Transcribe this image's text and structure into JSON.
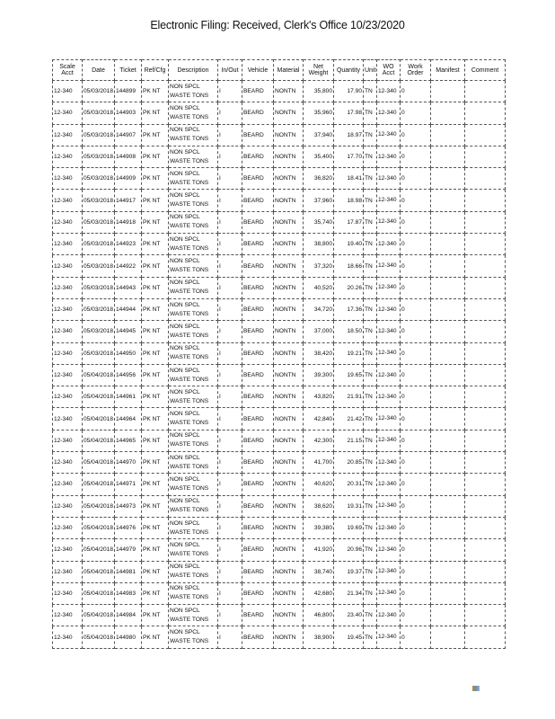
{
  "header": {
    "title": "Electronic Filing: Received, Clerk's Office 10/23/2020"
  },
  "table": {
    "columns": [
      "Scale Acct",
      "Date",
      "Ticket",
      "Ref/Cfg",
      "Description",
      "In/Out",
      "Vehicle",
      "Material",
      "Net Weight",
      "Quantity",
      "Unit",
      "WO Acct",
      "Work Order",
      "Manifest",
      "Comment"
    ],
    "rows": [
      [
        "12-340",
        "05/03/2018",
        "144899",
        "PK NT",
        "NON SPCL WASTE TONS",
        "I",
        "BEARD",
        "NONTN",
        "35,800",
        "17.90",
        "TN",
        "12-340",
        "0",
        "",
        ""
      ],
      [
        "12-340",
        "05/03/2018",
        "144903",
        "PK NT",
        "NON SPCL WASTE TONS",
        "I",
        "BEARD",
        "NONTN",
        "35,960",
        "17.98",
        "TN",
        "12-340",
        "0",
        "",
        ""
      ],
      [
        "12-340",
        "05/03/2018",
        "144907",
        "PK NT",
        "NON SPCL WASTE TONS",
        "I",
        "BEARD",
        "NONTN",
        "37,940",
        "18.97",
        "TN",
        "12-340",
        "0",
        "",
        ""
      ],
      [
        "12-340",
        "05/03/2018",
        "144908",
        "PK NT",
        "NON SPCL WASTE TONS",
        "I",
        "BEARD",
        "NONTN",
        "35,400",
        "17.70",
        "TN",
        "12-340",
        "0",
        "",
        ""
      ],
      [
        "12-340",
        "05/03/2018",
        "144909",
        "PK NT",
        "NON SPCL WASTE TONS",
        "I",
        "BEARD",
        "NONTN",
        "36,820",
        "18.41",
        "TN",
        "12-340",
        "0",
        "",
        ""
      ],
      [
        "12-340",
        "05/03/2018",
        "144917",
        "PK NT",
        "NON SPCL WASTE TONS",
        "I",
        "BEARD",
        "NONTN",
        "37,960",
        "18.98",
        "TN",
        "12-340",
        "0",
        "",
        ""
      ],
      [
        "12-340",
        "05/03/2018",
        "144918",
        "PK NT",
        "NON SPCL WASTE TONS",
        "I",
        "BEARD",
        "NONTN",
        "35,740",
        "17.87",
        "TN",
        "12-340",
        "0",
        "",
        ""
      ],
      [
        "12-340",
        "05/03/2018",
        "144923",
        "PK NT",
        "NON SPCL WASTE TONS",
        "I",
        "BEARD",
        "NONTN",
        "38,800",
        "19.40",
        "TN",
        "12-340",
        "0",
        "",
        ""
      ],
      [
        "12-340",
        "05/03/2018",
        "144922",
        "PK NT",
        "NON SPCL WASTE TONS",
        "I",
        "BEARD",
        "NONTN",
        "37,320",
        "18.66",
        "TN",
        "12-340",
        "0",
        "",
        ""
      ],
      [
        "12-340",
        "05/03/2018",
        "144943",
        "PK NT",
        "NON SPCL WASTE TONS",
        "I",
        "BEARD",
        "NONTN",
        "40,520",
        "20.26",
        "TN",
        "12-340",
        "0",
        "",
        ""
      ],
      [
        "12-340",
        "05/03/2018",
        "144944",
        "PK NT",
        "NON SPCL WASTE TONS",
        "I",
        "BEARD",
        "NONTN",
        "34,720",
        "17.36",
        "TN",
        "12-340",
        "0",
        "",
        ""
      ],
      [
        "12-340",
        "05/03/2018",
        "144945",
        "PK NT",
        "NON SPCL WASTE TONS",
        "I",
        "BEARD",
        "NONTN",
        "37,000",
        "18.50",
        "TN",
        "12-340",
        "0",
        "",
        ""
      ],
      [
        "12-340",
        "05/03/2018",
        "144950",
        "PK NT",
        "NON SPCL WASTE TONS",
        "I",
        "BEARD",
        "NONTN",
        "38,420",
        "19.21",
        "TN",
        "12-340",
        "0",
        "",
        ""
      ],
      [
        "12-340",
        "05/04/2018",
        "144956",
        "PK NT",
        "NON SPCL WASTE TONS",
        "I",
        "BEARD",
        "NONTN",
        "39,300",
        "19.65",
        "TN",
        "12-340",
        "0",
        "",
        ""
      ],
      [
        "12-340",
        "05/04/2018",
        "144961",
        "PK NT",
        "NON SPCL WASTE TONS",
        "I",
        "BEARD",
        "NONTN",
        "43,820",
        "21.91",
        "TN",
        "12-340",
        "0",
        "",
        ""
      ],
      [
        "12-340",
        "05/04/2018",
        "144964",
        "PK NT",
        "NON SPCL WASTE TONS",
        "I",
        "BEARD",
        "NONTN",
        "42,840",
        "21.42",
        "TN",
        "12-340",
        "0",
        "",
        ""
      ],
      [
        "12-340",
        "05/04/2018",
        "144965",
        "PK NT",
        "NON SPCL WASTE TONS",
        "I",
        "BEARD",
        "NONTN",
        "42,300",
        "21.15",
        "TN",
        "12-340",
        "0",
        "",
        ""
      ],
      [
        "12-340",
        "05/04/2018",
        "144970",
        "PK NT",
        "NON SPCL WASTE TONS",
        "I",
        "BEARD",
        "NONTN",
        "41,700",
        "20.85",
        "TN",
        "12-340",
        "0",
        "",
        ""
      ],
      [
        "12-340",
        "05/04/2018",
        "144971",
        "PK NT",
        "NON SPCL WASTE TONS",
        "I",
        "BEARD",
        "NONTN",
        "40,620",
        "20.31",
        "TN",
        "12-340",
        "0",
        "",
        ""
      ],
      [
        "12-340",
        "05/04/2018",
        "144973",
        "PK NT",
        "NON SPCL WASTE TONS",
        "I",
        "BEARD",
        "NONTN",
        "38,620",
        "19.31",
        "TN",
        "12-340",
        "0",
        "",
        ""
      ],
      [
        "12-340",
        "05/04/2018",
        "144976",
        "PK NT",
        "NON SPCL WASTE TONS",
        "I",
        "BEARD",
        "NONTN",
        "39,380",
        "19.69",
        "TN",
        "12-340",
        "0",
        "",
        ""
      ],
      [
        "12-340",
        "05/04/2018",
        "144979",
        "PK NT",
        "NON SPCL WASTE TONS",
        "I",
        "BEARD",
        "NONTN",
        "41,920",
        "20.96",
        "TN",
        "12-340",
        "0",
        "",
        ""
      ],
      [
        "12-340",
        "05/04/2018",
        "144981",
        "PK NT",
        "NON SPCL WASTE TONS",
        "I",
        "BEARD",
        "NONTN",
        "38,740",
        "19.37",
        "TN",
        "12-340",
        "0",
        "",
        ""
      ],
      [
        "12-340",
        "05/04/2018",
        "144983",
        "PK NT",
        "NON SPCL WASTE TONS",
        "I",
        "BEARD",
        "NONTN",
        "42,680",
        "21.34",
        "TN",
        "12-340",
        "0",
        "",
        ""
      ],
      [
        "12-340",
        "05/04/2018",
        "144984",
        "PK NT",
        "NON SPCL WASTE TONS",
        "I",
        "BEARD",
        "NONTN",
        "46,800",
        "23.40",
        "TN",
        "12-340",
        "0",
        "",
        ""
      ],
      [
        "12-340",
        "05/04/2018",
        "144980",
        "PK NT",
        "NON SPCL WASTE TONS",
        "I",
        "BEARD",
        "NONTN",
        "38,900",
        "19.45",
        "TN",
        "12-340",
        "0",
        "",
        ""
      ]
    ]
  }
}
